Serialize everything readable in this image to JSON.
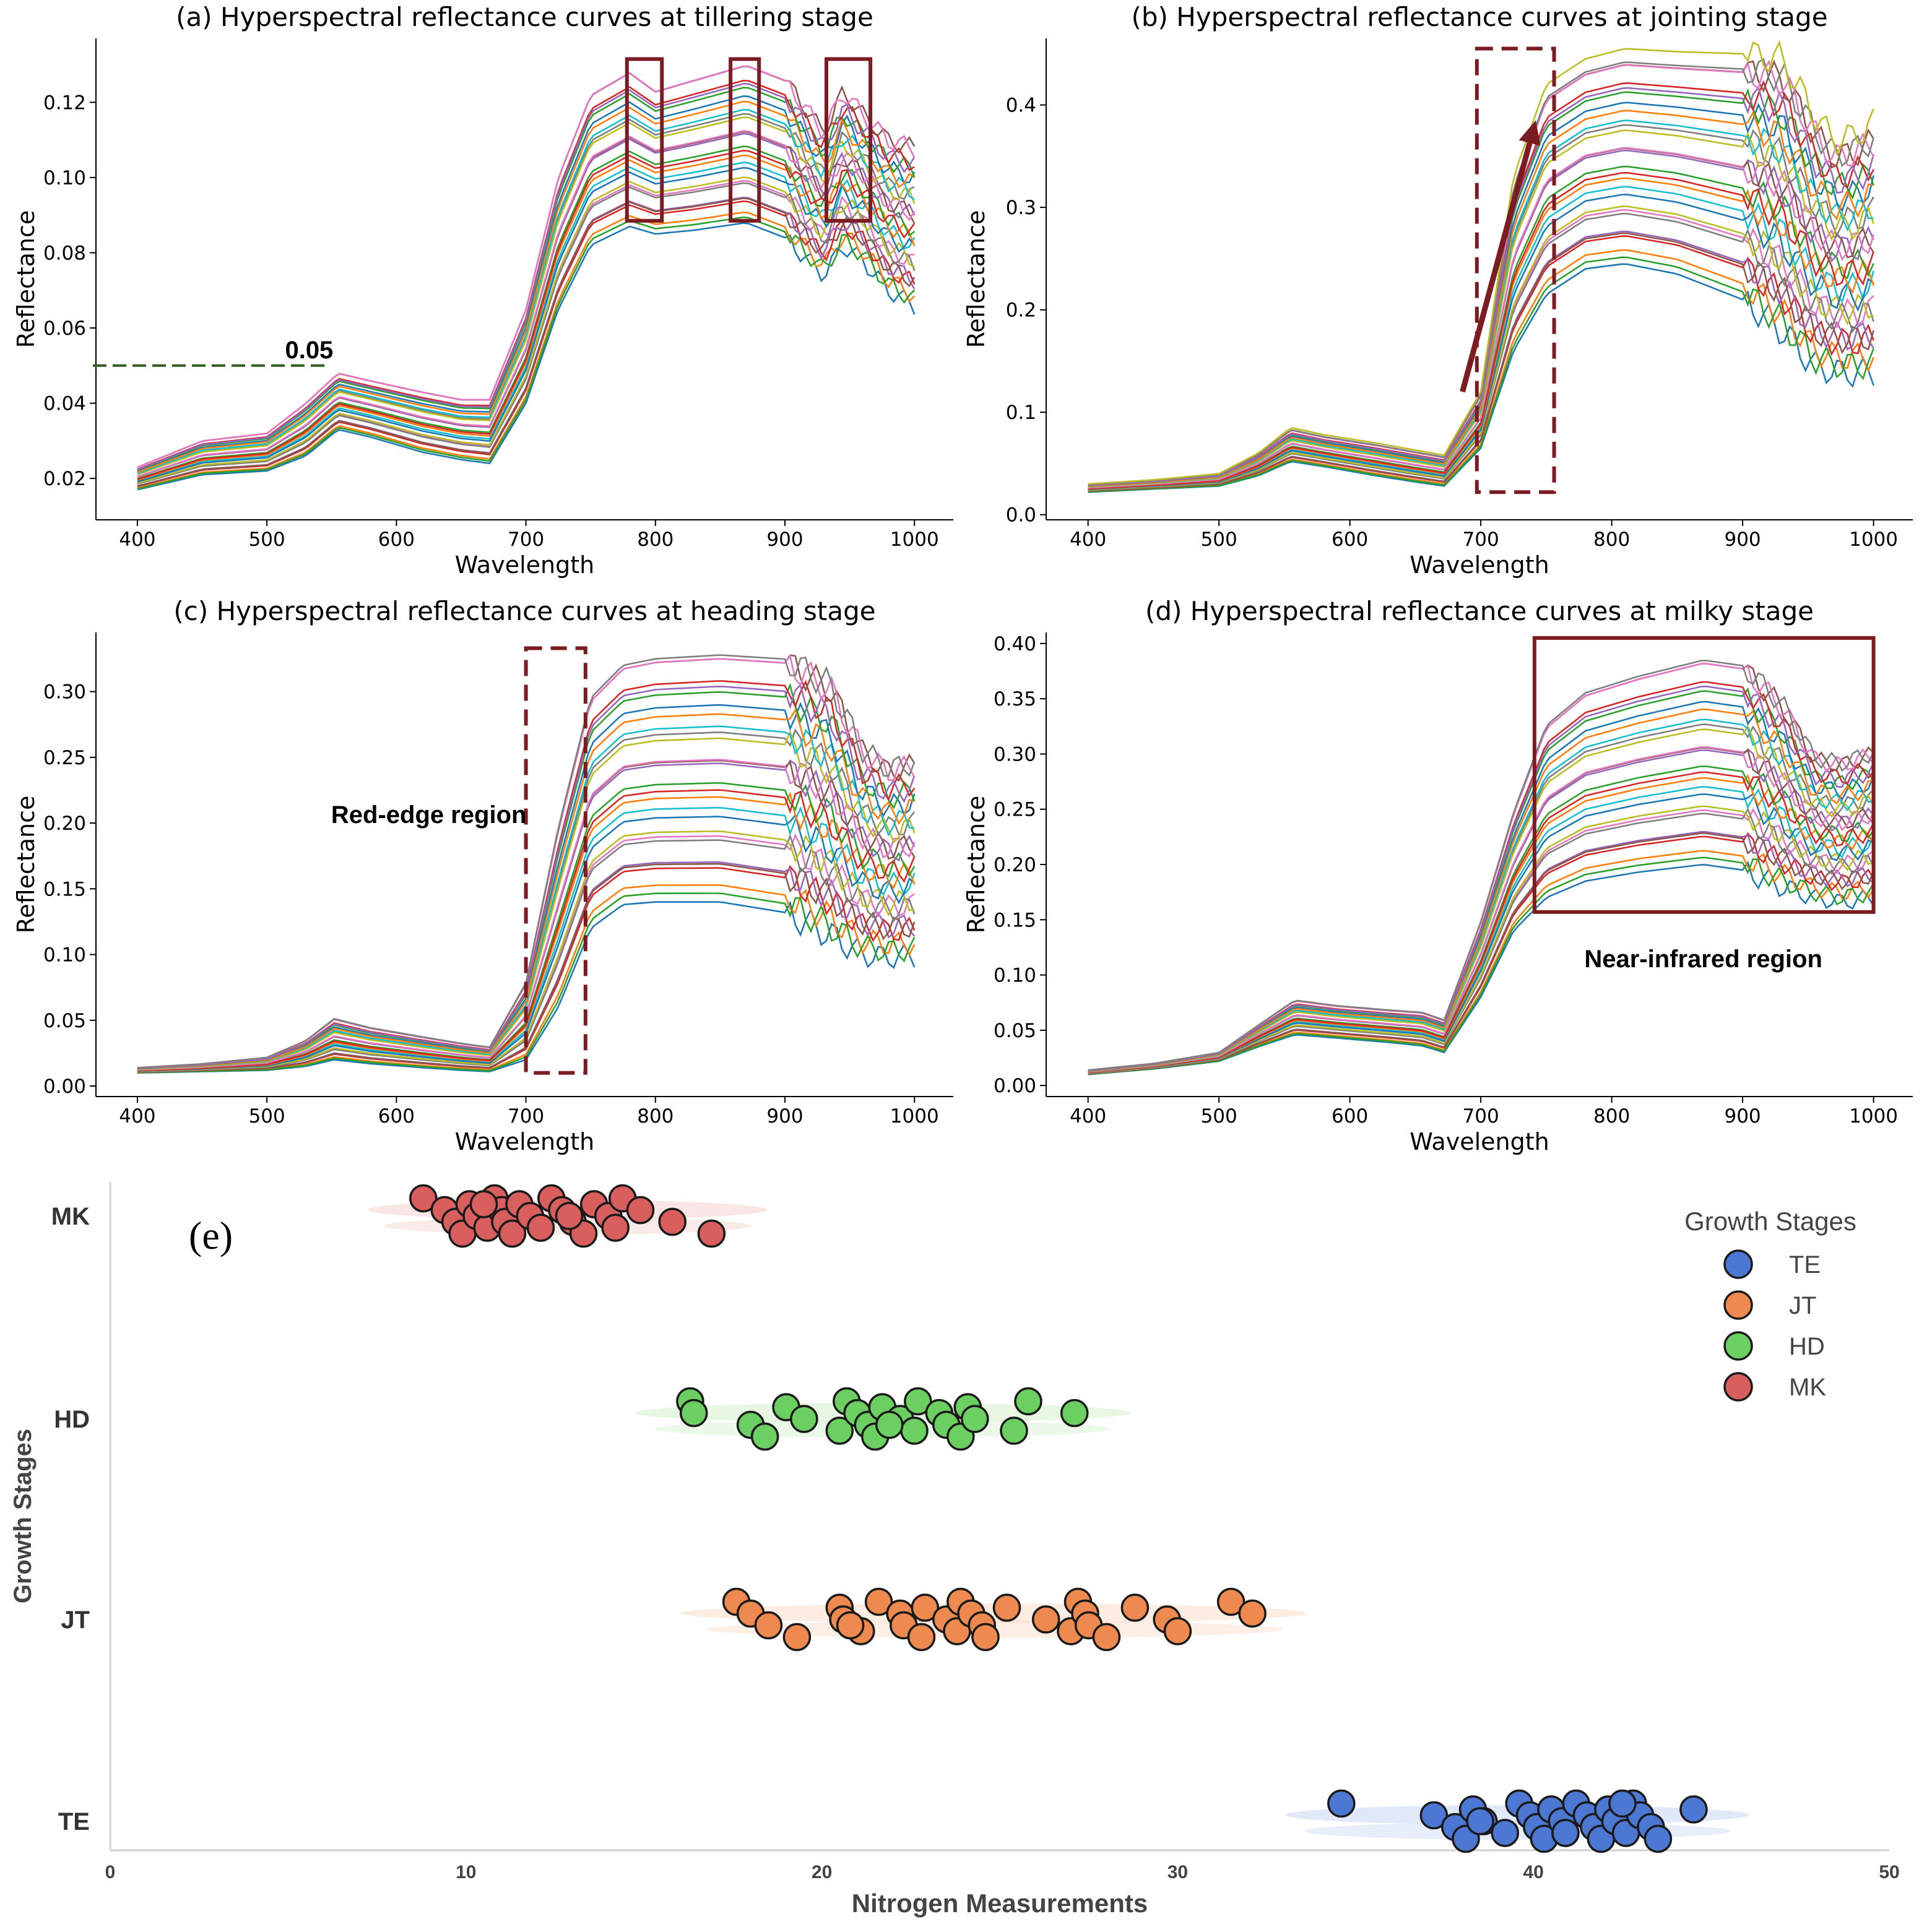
{
  "chart_data": [
    {
      "id": "a",
      "type": "line",
      "title": "(a) Hyperspectral reflectance curves at tillering stage",
      "xlabel": "Wavelength",
      "ylabel": "Reflectance",
      "xlim": [
        368,
        1030
      ],
      "ylim": [
        0.009,
        0.137
      ],
      "xticks": [
        400,
        500,
        600,
        700,
        800,
        900,
        1000
      ],
      "yticks": [
        0.02,
        0.04,
        0.06,
        0.08,
        0.1,
        0.12
      ],
      "ytick_labels": [
        "0.02",
        "0.04",
        "0.06",
        "0.08",
        "0.10",
        "0.12"
      ],
      "template": {
        "x": [
          400,
          450,
          500,
          530,
          555,
          580,
          620,
          650,
          672,
          700,
          725,
          750,
          780,
          800,
          830,
          870,
          900,
          930,
          945,
          960,
          980,
          1000
        ],
        "low": [
          0.017,
          0.021,
          0.022,
          0.026,
          0.033,
          0.031,
          0.027,
          0.025,
          0.024,
          0.04,
          0.065,
          0.082,
          0.087,
          0.085,
          0.086,
          0.088,
          0.084,
          0.074,
          0.082,
          0.078,
          0.07,
          0.066
        ],
        "high": [
          0.023,
          0.03,
          0.032,
          0.04,
          0.048,
          0.046,
          0.043,
          0.041,
          0.041,
          0.065,
          0.1,
          0.122,
          0.128,
          0.123,
          0.126,
          0.13,
          0.126,
          0.112,
          0.123,
          0.117,
          0.11,
          0.108
        ]
      },
      "series_count": 27,
      "annotation_text": "0.05",
      "annotation_line_y": 0.05,
      "highlight_boxes_x": [
        [
          778,
          805
        ],
        [
          858,
          880
        ],
        [
          932,
          966
        ]
      ]
    },
    {
      "id": "b",
      "type": "line",
      "title": "(b) Hyperspectral reflectance curves at jointing stage",
      "xlabel": "Wavelength",
      "ylabel": "Reflectance",
      "xlim": [
        368,
        1030
      ],
      "ylim": [
        -0.005,
        0.465
      ],
      "xticks": [
        400,
        500,
        600,
        700,
        800,
        900,
        1000
      ],
      "yticks": [
        0.0,
        0.1,
        0.2,
        0.3,
        0.4
      ],
      "ytick_labels": [
        "0.0",
        "0.1",
        "0.2",
        "0.3",
        "0.4"
      ],
      "template": {
        "x": [
          400,
          450,
          500,
          530,
          555,
          580,
          620,
          650,
          672,
          700,
          725,
          750,
          780,
          810,
          850,
          900,
          930,
          955,
          970,
          985,
          1000
        ],
        "low": [
          0.022,
          0.025,
          0.028,
          0.038,
          0.052,
          0.047,
          0.038,
          0.032,
          0.028,
          0.065,
          0.16,
          0.215,
          0.24,
          0.245,
          0.235,
          0.21,
          0.18,
          0.145,
          0.14,
          0.138,
          0.14
        ],
        "high": [
          0.03,
          0.034,
          0.04,
          0.06,
          0.085,
          0.078,
          0.07,
          0.063,
          0.058,
          0.12,
          0.33,
          0.42,
          0.445,
          0.455,
          0.452,
          0.45,
          0.445,
          0.39,
          0.365,
          0.37,
          0.382
        ]
      },
      "series_count": 29,
      "highlight_box_x": [
        697,
        756
      ],
      "highlight_box_y": [
        0.022,
        0.455
      ],
      "arrow_from": [
        686,
        0.12
      ],
      "arrow_to": [
        742,
        0.385
      ]
    },
    {
      "id": "c",
      "type": "line",
      "title": "(c) Hyperspectral reflectance curves at heading stage",
      "xlabel": "Wavelength",
      "ylabel": "Reflectance",
      "xlim": [
        368,
        1030
      ],
      "ylim": [
        -0.008,
        0.345
      ],
      "xticks": [
        400,
        500,
        600,
        700,
        800,
        900,
        1000
      ],
      "yticks": [
        0.0,
        0.05,
        0.1,
        0.15,
        0.2,
        0.25,
        0.3
      ],
      "ytick_labels": [
        "0.00",
        "0.05",
        "0.10",
        "0.15",
        "0.20",
        "0.25",
        "0.30"
      ],
      "template": {
        "x": [
          400,
          450,
          500,
          530,
          552,
          580,
          620,
          650,
          672,
          700,
          725,
          750,
          775,
          800,
          850,
          900,
          935,
          960,
          980,
          1000
        ],
        "low": [
          0.01,
          0.011,
          0.012,
          0.015,
          0.02,
          0.017,
          0.014,
          0.012,
          0.011,
          0.02,
          0.06,
          0.12,
          0.138,
          0.14,
          0.14,
          0.132,
          0.115,
          0.1,
          0.098,
          0.099
        ],
        "high": [
          0.014,
          0.017,
          0.022,
          0.035,
          0.052,
          0.045,
          0.038,
          0.033,
          0.03,
          0.08,
          0.2,
          0.3,
          0.325,
          0.33,
          0.333,
          0.33,
          0.31,
          0.26,
          0.245,
          0.25
        ]
      },
      "series_count": 28,
      "annotation_text": "Red-edge region",
      "highlight_box_x": [
        700,
        746
      ],
      "highlight_box_y": [
        0.01,
        0.333
      ]
    },
    {
      "id": "d",
      "type": "line",
      "title": "(d) Hyperspectral reflectance curves at milky stage",
      "xlabel": "Wavelength",
      "ylabel": "Reflectance",
      "xlim": [
        368,
        1030
      ],
      "ylim": [
        -0.01,
        0.41
      ],
      "xticks": [
        400,
        500,
        600,
        700,
        800,
        900,
        1000
      ],
      "yticks": [
        0.0,
        0.05,
        0.1,
        0.15,
        0.2,
        0.25,
        0.3,
        0.35,
        0.4
      ],
      "ytick_labels": [
        "0.00",
        "0.05",
        "0.10",
        "0.15",
        "0.20",
        "0.25",
        "0.30",
        "0.35",
        "0.40"
      ],
      "template": {
        "x": [
          400,
          450,
          500,
          530,
          558,
          590,
          630,
          655,
          672,
          700,
          725,
          750,
          780,
          820,
          870,
          900,
          930,
          955,
          975,
          1000
        ],
        "low": [
          0.01,
          0.015,
          0.022,
          0.035,
          0.046,
          0.043,
          0.039,
          0.036,
          0.03,
          0.08,
          0.14,
          0.17,
          0.185,
          0.193,
          0.2,
          0.195,
          0.18,
          0.17,
          0.166,
          0.17
        ],
        "high": [
          0.014,
          0.02,
          0.03,
          0.055,
          0.078,
          0.073,
          0.069,
          0.067,
          0.06,
          0.15,
          0.25,
          0.33,
          0.36,
          0.375,
          0.39,
          0.385,
          0.35,
          0.3,
          0.295,
          0.305
        ]
      },
      "series_count": 28,
      "annotation_text": "Near-infrared region",
      "highlight_box_x": [
        741,
        1000
      ],
      "highlight_box_y": [
        0.157,
        0.405
      ]
    },
    {
      "id": "e",
      "type": "scatter",
      "panel_label": "(e)",
      "xlabel": "Nitrogen Measurements",
      "ylabel": "Growth Stages",
      "xlim": [
        0,
        50
      ],
      "xticks": [
        0,
        10,
        20,
        30,
        40,
        50
      ],
      "categories": [
        "MK",
        "HD",
        "JT",
        "TE"
      ],
      "legend_title": "Growth Stages",
      "series": [
        {
          "name": "TE",
          "color": "#4c78d4",
          "halo": "#c9d6f2",
          "values": [
            34.6,
            37.2,
            37.8,
            38.1,
            38.3,
            38.6,
            39.2,
            39.6,
            39.9,
            40.1,
            40.3,
            40.5,
            40.8,
            40.9,
            41.2,
            41.5,
            41.7,
            41.9,
            42.1,
            42.3,
            42.6,
            42.8,
            43.0,
            43.3,
            43.5,
            44.5,
            38.5,
            40.9,
            42.5
          ]
        },
        {
          "name": "JT",
          "color": "#ee8a4f",
          "halo": "#fbdcc8",
          "values": [
            17.6,
            18.0,
            18.5,
            19.3,
            20.5,
            20.6,
            21.1,
            21.6,
            22.2,
            22.3,
            22.8,
            22.9,
            23.5,
            23.8,
            23.9,
            24.2,
            24.5,
            24.6,
            25.2,
            26.3,
            27.0,
            27.2,
            27.4,
            27.5,
            28.0,
            28.8,
            29.7,
            30.0,
            31.5,
            32.1,
            20.8
          ]
        },
        {
          "name": "HD",
          "color": "#6ccf62",
          "halo": "#d3f1ce",
          "values": [
            16.3,
            16.4,
            18.0,
            18.4,
            19.0,
            19.5,
            20.5,
            20.7,
            21.0,
            21.3,
            21.5,
            21.7,
            22.2,
            22.6,
            22.7,
            23.3,
            23.5,
            23.9,
            24.1,
            24.3,
            25.4,
            25.8,
            27.1,
            21.9
          ]
        },
        {
          "name": "MK",
          "color": "#d95f5f",
          "halo": "#f5d2d2",
          "values": [
            8.8,
            9.4,
            9.7,
            9.9,
            10.1,
            10.3,
            10.6,
            10.8,
            11.0,
            11.1,
            11.3,
            11.5,
            11.8,
            12.1,
            12.4,
            12.7,
            13.0,
            13.3,
            13.6,
            14.0,
            14.2,
            14.4,
            14.9,
            15.8,
            16.9,
            10.5,
            12.9
          ]
        }
      ]
    }
  ]
}
